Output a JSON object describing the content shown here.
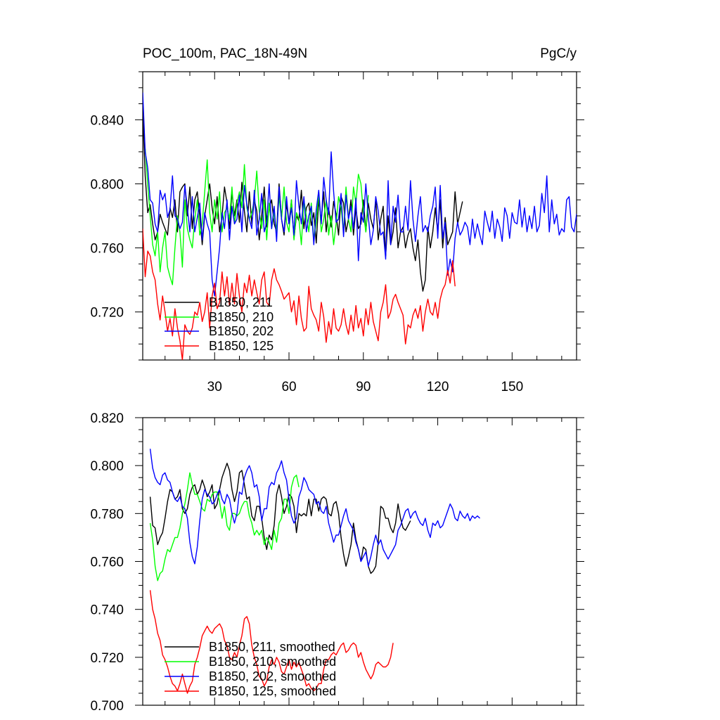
{
  "header": {
    "left": "POC_100m, PAC_18N-49N",
    "right": "PgC/y"
  },
  "colors": {
    "black": "#000000",
    "green": "#00ff00",
    "blue": "#0000ff",
    "red": "#ff0000"
  },
  "chart_data": [
    {
      "type": "line",
      "title": "POC_100m, PAC_18N-49N",
      "units": "PgC/y",
      "xlim": [
        1,
        176
      ],
      "ylim": [
        0.69,
        0.87
      ],
      "x_ticks": [
        30,
        60,
        90,
        120,
        150
      ],
      "x_tick_labels": [
        "30",
        "60",
        "90",
        "120",
        "150"
      ],
      "y_ticks": [
        0.72,
        0.76,
        0.8,
        0.84
      ],
      "y_tick_labels": [
        "0.720",
        "0.760",
        "0.800",
        "0.840"
      ],
      "legend_position": "bottom-left",
      "series": [
        {
          "name": "B1850, 211",
          "color": "#000000",
          "x_start": 1,
          "values": [
            0.845,
            0.805,
            0.782,
            0.787,
            0.775,
            0.765,
            0.77,
            0.781,
            0.776,
            0.772,
            0.768,
            0.785,
            0.779,
            0.79,
            0.77,
            0.795,
            0.798,
            0.8,
            0.78,
            0.798,
            0.772,
            0.79,
            0.795,
            0.78,
            0.762,
            0.78,
            0.79,
            0.8,
            0.785,
            0.775,
            0.792,
            0.77,
            0.78,
            0.798,
            0.788,
            0.772,
            0.795,
            0.78,
            0.79,
            0.776,
            0.801,
            0.783,
            0.77,
            0.795,
            0.775,
            0.79,
            0.783,
            0.765,
            0.78,
            0.798,
            0.773,
            0.785,
            0.79,
            0.775,
            0.77,
            0.8,
            0.778,
            0.768,
            0.788,
            0.775,
            0.79,
            0.766,
            0.78,
            0.777,
            0.796,
            0.772,
            0.785,
            0.788,
            0.774,
            0.782,
            0.763,
            0.79,
            0.777,
            0.795,
            0.77,
            0.785,
            0.773,
            0.789,
            0.781,
            0.768,
            0.792,
            0.788,
            0.77,
            0.778,
            0.79,
            0.768,
            0.785,
            0.772,
            0.775,
            0.79,
            0.77,
            0.788,
            0.778,
            0.772,
            0.79,
            0.765,
            0.778,
            0.786,
            0.755,
            0.78,
            0.762,
            0.77,
            0.785,
            0.76,
            0.77,
            0.773,
            0.76,
            0.768,
            0.772,
            0.76,
            0.752,
            0.765,
            0.745,
            0.733,
            0.74,
            0.773,
            0.76,
            0.77,
            0.785,
            0.77,
            0.79,
            0.76,
            0.779,
            0.762,
            0.766,
            0.77,
            0.795,
            0.775,
            0.782,
            0.789
          ]
        },
        {
          "name": "B1850, 210",
          "color": "#00ff00",
          "x_start": 2,
          "values": [
            0.822,
            0.8,
            0.78,
            0.762,
            0.755,
            0.77,
            0.745,
            0.76,
            0.77,
            0.748,
            0.742,
            0.737,
            0.76,
            0.78,
            0.77,
            0.748,
            0.79,
            0.772,
            0.765,
            0.76,
            0.778,
            0.79,
            0.768,
            0.775,
            0.795,
            0.815,
            0.782,
            0.77,
            0.79,
            0.778,
            0.795,
            0.77,
            0.782,
            0.785,
            0.778,
            0.798,
            0.775,
            0.788,
            0.795,
            0.785,
            0.812,
            0.785,
            0.778,
            0.782,
            0.79,
            0.808,
            0.783,
            0.772,
            0.79,
            0.765,
            0.788,
            0.772,
            0.782,
            0.77,
            0.792,
            0.778,
            0.798,
            0.776,
            0.77,
            0.79,
            0.765,
            0.782,
            0.778,
            0.762,
            0.79,
            0.78,
            0.77,
            0.788,
            0.765,
            0.776,
            0.795,
            0.77,
            0.778,
            0.79,
            0.768,
            0.78,
            0.762,
            0.775,
            0.792,
            0.785,
            0.77,
            0.798,
            0.778,
            0.77,
            0.798,
            0.788,
            0.806,
            0.8,
            0.782,
            0.77,
            0.793
          ]
        },
        {
          "name": "B1850, 202",
          "color": "#0000ff",
          "x_start": 1,
          "values": [
            0.857,
            0.82,
            0.81,
            0.79,
            0.788,
            0.775,
            0.77,
            0.796,
            0.79,
            0.794,
            0.779,
            0.784,
            0.805,
            0.78,
            0.778,
            0.772,
            0.776,
            0.799,
            0.785,
            0.77,
            0.792,
            0.77,
            0.779,
            0.788,
            0.765,
            0.782,
            0.775,
            0.77,
            0.74,
            0.73,
            0.745,
            0.76,
            0.782,
            0.772,
            0.79,
            0.765,
            0.786,
            0.775,
            0.778,
            0.793,
            0.77,
            0.799,
            0.787,
            0.778,
            0.772,
            0.796,
            0.768,
            0.778,
            0.794,
            0.77,
            0.776,
            0.8,
            0.772,
            0.786,
            0.764,
            0.798,
            0.778,
            0.77,
            0.792,
            0.775,
            0.785,
            0.768,
            0.802,
            0.786,
            0.775,
            0.792,
            0.77,
            0.78,
            0.786,
            0.762,
            0.784,
            0.796,
            0.775,
            0.804,
            0.79,
            0.781,
            0.82,
            0.795,
            0.776,
            0.778,
            0.794,
            0.767,
            0.793,
            0.778,
            0.786,
            0.772,
            0.791,
            0.752,
            0.782,
            0.776,
            0.8,
            0.78,
            0.762,
            0.771,
            0.792,
            0.783,
            0.768,
            0.77,
            0.753,
            0.802,
            0.762,
            0.786,
            0.776,
            0.793,
            0.77,
            0.77,
            0.786,
            0.771,
            0.802,
            0.778,
            0.764,
            0.78,
            0.792,
            0.77,
            0.774,
            0.77,
            0.78,
            0.786,
            0.798,
            0.766,
            0.799,
            0.766,
            0.776,
            0.743,
            0.753,
            0.745,
            0.766,
            0.776,
            0.768,
            0.771,
            0.776,
            0.773,
            0.762,
            0.778,
            0.766,
            0.775,
            0.768,
            0.762,
            0.783,
            0.776,
            0.77,
            0.783,
            0.766,
            0.778,
            0.773,
            0.764,
            0.785,
            0.78,
            0.766,
            0.782,
            0.776,
            0.775,
            0.79,
            0.773,
            0.785,
            0.77,
            0.78,
            0.772,
            0.786,
            0.77,
            0.774,
            0.794,
            0.782,
            0.805,
            0.77,
            0.79,
            0.775,
            0.781,
            0.768,
            0.772,
            0.77,
            0.79,
            0.792,
            0.773,
            0.77,
            0.781,
            0.76,
            0.77,
            0.793
          ]
        },
        {
          "name": "B1850, 125",
          "color": "#ff0000",
          "x_start": 1,
          "values": [
            0.772,
            0.742,
            0.758,
            0.755,
            0.745,
            0.74,
            0.725,
            0.715,
            0.73,
            0.72,
            0.708,
            0.716,
            0.705,
            0.722,
            0.71,
            0.702,
            0.69,
            0.712,
            0.708,
            0.706,
            0.71,
            0.72,
            0.718,
            0.726,
            0.714,
            0.72,
            0.732,
            0.71,
            0.73,
            0.738,
            0.722,
            0.726,
            0.745,
            0.73,
            0.742,
            0.724,
            0.738,
            0.725,
            0.744,
            0.73,
            0.72,
            0.738,
            0.732,
            0.743,
            0.73,
            0.74,
            0.732,
            0.725,
            0.74,
            0.745,
            0.726,
            0.724,
            0.74,
            0.747,
            0.74,
            0.737,
            0.733,
            0.728,
            0.73,
            0.732,
            0.72,
            0.727,
            0.712,
            0.73,
            0.716,
            0.708,
            0.71,
            0.736,
            0.722,
            0.718,
            0.715,
            0.708,
            0.726,
            0.717,
            0.701,
            0.714,
            0.706,
            0.722,
            0.71,
            0.708,
            0.712,
            0.722,
            0.712,
            0.706,
            0.718,
            0.708,
            0.724,
            0.71,
            0.716,
            0.705,
            0.722,
            0.712,
            0.726,
            0.714,
            0.708,
            0.702,
            0.72,
            0.726,
            0.737,
            0.716,
            0.72,
            0.728,
            0.731,
            0.726,
            0.722,
            0.718,
            0.7,
            0.712,
            0.71,
            0.718,
            0.722,
            0.716,
            0.724,
            0.708,
            0.72,
            0.728,
            0.72,
            0.718,
            0.726,
            0.716,
            0.728,
            0.734,
            0.737,
            0.746,
            0.738,
            0.752,
            0.736
          ]
        }
      ]
    },
    {
      "type": "line",
      "xlim": [
        1,
        176
      ],
      "ylim": [
        0.7,
        0.82
      ],
      "x_ticks": [
        30,
        60,
        90,
        120,
        150
      ],
      "y_ticks": [
        0.7,
        0.72,
        0.74,
        0.76,
        0.78,
        0.8,
        0.82
      ],
      "y_tick_labels": [
        "0.700",
        "0.720",
        "0.740",
        "0.760",
        "0.780",
        "0.800",
        "0.820"
      ],
      "legend_position": "bottom-left",
      "series": [
        {
          "name": "B1850, 211, smoothed",
          "color": "#000000",
          "x_start": 4,
          "values": [
            0.787,
            0.775,
            0.774,
            0.767,
            0.77,
            0.772,
            0.778,
            0.785,
            0.79,
            0.789,
            0.786,
            0.787,
            0.79,
            0.782,
            0.78,
            0.782,
            0.788,
            0.791,
            0.792,
            0.788,
            0.79,
            0.794,
            0.791,
            0.787,
            0.789,
            0.792,
            0.782,
            0.784,
            0.79,
            0.795,
            0.798,
            0.801,
            0.798,
            0.79,
            0.785,
            0.789,
            0.797,
            0.798,
            0.792,
            0.786,
            0.787,
            0.779,
            0.777,
            0.783,
            0.783,
            0.778,
            0.77,
            0.765,
            0.771,
            0.769,
            0.775,
            0.788,
            0.792,
            0.787,
            0.78,
            0.783,
            0.788,
            0.787,
            0.783,
            0.772,
            0.78,
            0.779,
            0.78,
            0.779,
            0.786,
            0.779,
            0.786,
            0.786,
            0.781,
            0.786,
            0.787,
            0.786,
            0.78,
            0.779,
            0.784,
            0.785,
            0.78,
            0.77,
            0.763,
            0.758,
            0.762,
            0.767,
            0.776,
            0.769,
            0.765,
            0.76,
            0.766,
            0.765,
            0.758,
            0.755,
            0.756,
            0.758,
            0.768,
            0.783,
            0.782,
            0.778,
            0.778,
            0.774,
            0.772,
            0.776,
            0.784,
            0.778,
            0.774,
            0.773,
            0.775,
            0.777
          ]
        },
        {
          "name": "B1850, 210, smoothed",
          "color": "#00ff00",
          "x_start": 4,
          "values": [
            0.776,
            0.769,
            0.758,
            0.752,
            0.755,
            0.756,
            0.761,
            0.765,
            0.764,
            0.767,
            0.77,
            0.77,
            0.774,
            0.78,
            0.784,
            0.79,
            0.797,
            0.792,
            0.788,
            0.788,
            0.785,
            0.782,
            0.781,
            0.786,
            0.785,
            0.788,
            0.789,
            0.789,
            0.785,
            0.778,
            0.783,
            0.775,
            0.773,
            0.78,
            0.78,
            0.779,
            0.78,
            0.783,
            0.785,
            0.785,
            0.779,
            0.776,
            0.771,
            0.773,
            0.771,
            0.773,
            0.767,
            0.77,
            0.768,
            0.765,
            0.773,
            0.768,
            0.776,
            0.778,
            0.786,
            0.786,
            0.78,
            0.791,
            0.795,
            0.796,
            0.791
          ]
        },
        {
          "name": "B1850, 202, smoothed",
          "color": "#0000ff",
          "x_start": 4,
          "values": [
            0.807,
            0.799,
            0.795,
            0.793,
            0.792,
            0.796,
            0.797,
            0.794,
            0.793,
            0.789,
            0.786,
            0.785,
            0.787,
            0.783,
            0.782,
            0.778,
            0.768,
            0.762,
            0.759,
            0.766,
            0.777,
            0.786,
            0.79,
            0.788,
            0.787,
            0.784,
            0.785,
            0.788,
            0.79,
            0.786,
            0.784,
            0.788,
            0.786,
            0.78,
            0.776,
            0.78,
            0.789,
            0.788,
            0.795,
            0.798,
            0.8,
            0.797,
            0.791,
            0.792,
            0.787,
            0.777,
            0.782,
            0.782,
            0.791,
            0.793,
            0.792,
            0.797,
            0.799,
            0.802,
            0.797,
            0.794,
            0.786,
            0.779,
            0.776,
            0.778,
            0.787,
            0.79,
            0.795,
            0.793,
            0.79,
            0.789,
            0.788,
            0.784,
            0.785,
            0.781,
            0.78,
            0.783,
            0.776,
            0.772,
            0.768,
            0.771,
            0.771,
            0.775,
            0.779,
            0.782,
            0.777,
            0.775,
            0.773,
            0.768,
            0.765,
            0.76,
            0.762,
            0.764,
            0.758,
            0.762,
            0.767,
            0.771,
            0.767,
            0.769,
            0.765,
            0.763,
            0.761,
            0.763,
            0.765,
            0.767,
            0.773,
            0.775,
            0.778,
            0.781,
            0.782,
            0.778,
            0.78,
            0.781,
            0.778,
            0.776,
            0.775,
            0.778,
            0.773,
            0.77,
            0.776,
            0.775,
            0.777,
            0.774,
            0.775,
            0.778,
            0.781,
            0.784,
            0.782,
            0.778,
            0.777,
            0.781,
            0.779,
            0.778,
            0.78,
            0.777,
            0.779,
            0.778,
            0.779,
            0.778
          ]
        },
        {
          "name": "B1850, 125, smoothed",
          "color": "#ff0000",
          "x_start": 4,
          "values": [
            0.748,
            0.74,
            0.736,
            0.73,
            0.727,
            0.721,
            0.719,
            0.716,
            0.712,
            0.709,
            0.708,
            0.706,
            0.709,
            0.713,
            0.709,
            0.705,
            0.708,
            0.71,
            0.717,
            0.72,
            0.724,
            0.729,
            0.731,
            0.733,
            0.731,
            0.73,
            0.732,
            0.733,
            0.734,
            0.732,
            0.727,
            0.725,
            0.72,
            0.719,
            0.722,
            0.72,
            0.725,
            0.729,
            0.736,
            0.737,
            0.734,
            0.725,
            0.72,
            0.717,
            0.712,
            0.711,
            0.708,
            0.71,
            0.716,
            0.719,
            0.717,
            0.72,
            0.718,
            0.714,
            0.713,
            0.716,
            0.719,
            0.715,
            0.718,
            0.716,
            0.718,
            0.715,
            0.712,
            0.708,
            0.709,
            0.707,
            0.706,
            0.707,
            0.709,
            0.709,
            0.715,
            0.719,
            0.719,
            0.721,
            0.722,
            0.721,
            0.723,
            0.725,
            0.726,
            0.722,
            0.723,
            0.725,
            0.726,
            0.725,
            0.72,
            0.722,
            0.718,
            0.715,
            0.713,
            0.711,
            0.713,
            0.717,
            0.718,
            0.717,
            0.716,
            0.716,
            0.717,
            0.72,
            0.726
          ]
        }
      ]
    }
  ]
}
